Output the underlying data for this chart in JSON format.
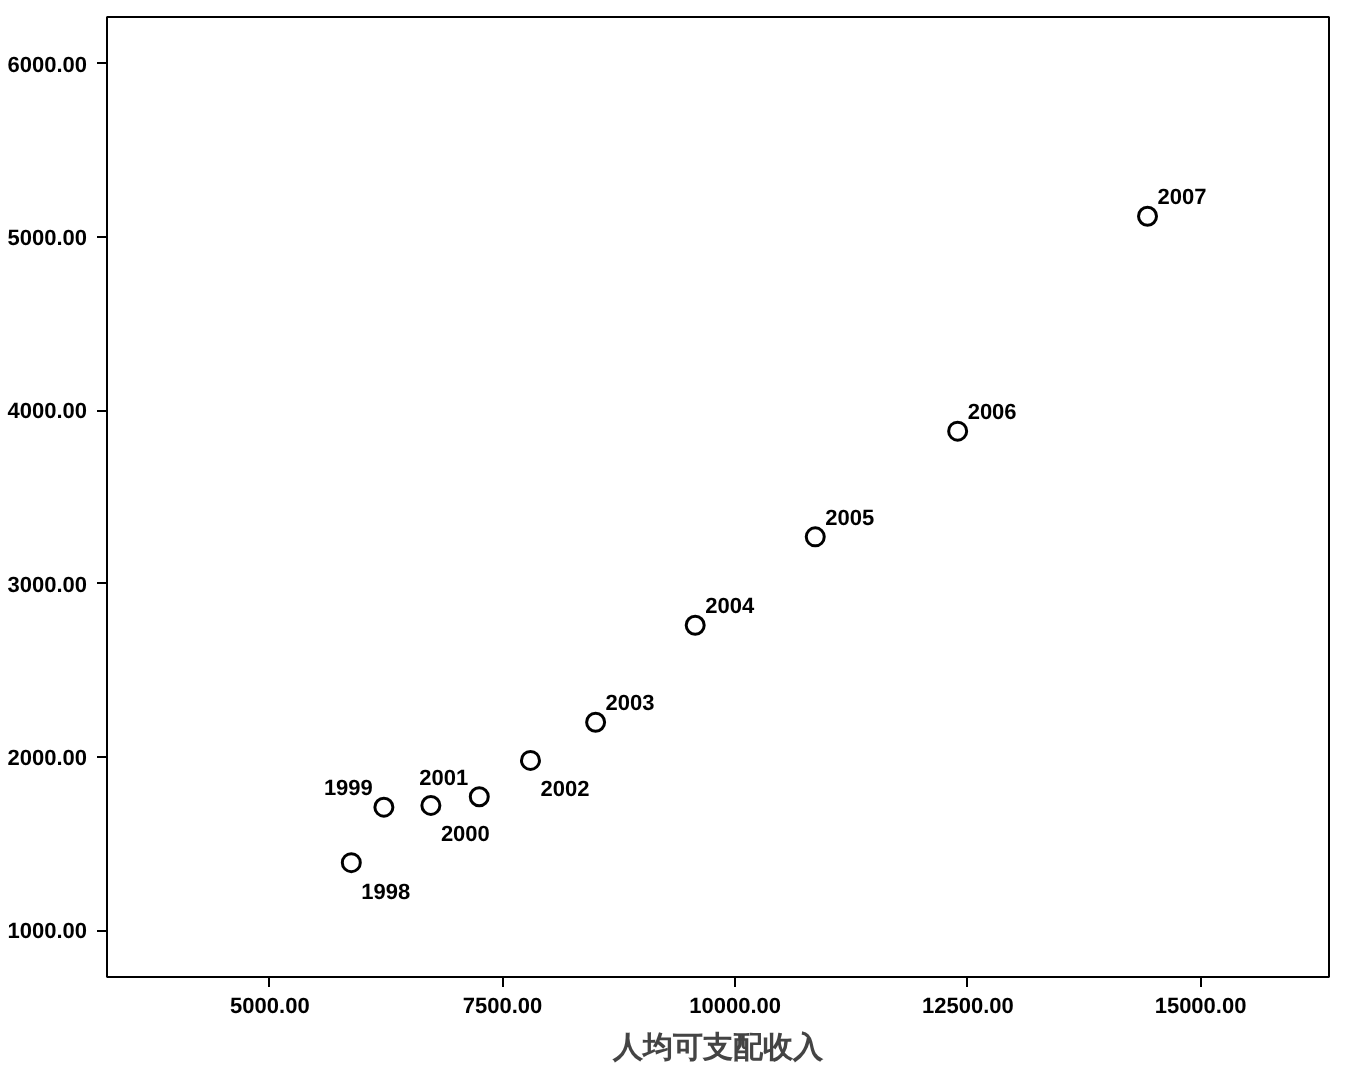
{
  "chart_data": {
    "type": "scatter",
    "xlabel": "人均可支配收入",
    "x": [
      5875,
      6225,
      6730,
      7250,
      7800,
      8500,
      9570,
      10860,
      12390,
      14430
    ],
    "values": [
      1390,
      1710,
      1720,
      1770,
      1980,
      2200,
      2760,
      3270,
      3880,
      5120
    ],
    "color": "#000000",
    "marker": "circle",
    "grid": false,
    "xlim": [
      3250,
      16380
    ],
    "ylim": [
      730,
      6270
    ],
    "xticks": [
      {
        "value": 5000,
        "label": "5000.00"
      },
      {
        "value": 7500,
        "label": "7500.00"
      },
      {
        "value": 10000,
        "label": "10000.00"
      },
      {
        "value": 12500,
        "label": "12500.00"
      },
      {
        "value": 15000,
        "label": "15000.00"
      }
    ],
    "yticks": [
      {
        "value": 1000,
        "label": "1000.00"
      },
      {
        "value": 2000,
        "label": "2000.00"
      },
      {
        "value": 3000,
        "label": "3000.00"
      },
      {
        "value": 4000,
        "label": "4000.00"
      },
      {
        "value": 5000,
        "label": "5000.00"
      },
      {
        "value": 6000,
        "label": "6000.00"
      }
    ],
    "annotations": [
      {
        "text": "1998",
        "x": 5875,
        "y": 1390
      },
      {
        "text": "1999",
        "x": 6225,
        "y": 1710
      },
      {
        "text": "2000",
        "x": 6730,
        "y": 1720
      },
      {
        "text": "2001",
        "x": 7250,
        "y": 1770
      },
      {
        "text": "2002",
        "x": 7800,
        "y": 1980
      },
      {
        "text": "2003",
        "x": 8500,
        "y": 2200
      },
      {
        "text": "2004",
        "x": 9570,
        "y": 2760
      },
      {
        "text": "2005",
        "x": 10860,
        "y": 3270
      },
      {
        "text": "2006",
        "x": 12390,
        "y": 3880
      },
      {
        "text": "2007",
        "x": 14430,
        "y": 5120
      }
    ]
  }
}
